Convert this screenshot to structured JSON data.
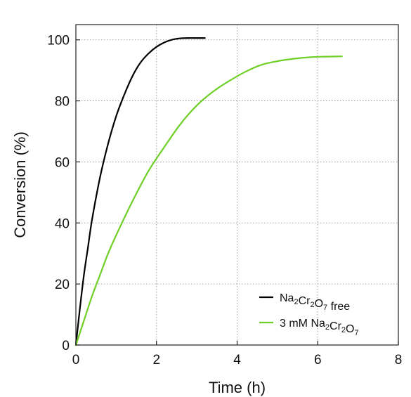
{
  "chart_data": {
    "type": "line",
    "xlabel": "Time (h)",
    "ylabel": "Conversion (%)",
    "xlim": [
      0,
      8
    ],
    "ylim": [
      0,
      105
    ],
    "xticks": [
      0,
      2,
      4,
      6,
      8
    ],
    "yticks": [
      0,
      20,
      40,
      60,
      80,
      100
    ],
    "grid": true,
    "legend_position": "bottom-right",
    "series": [
      {
        "name": "Na2Cr2O7 free",
        "legend": [
          {
            "t": "Na",
            "sub": false
          },
          {
            "t": "2",
            "sub": true
          },
          {
            "t": "Cr",
            "sub": false
          },
          {
            "t": "2",
            "sub": true
          },
          {
            "t": "O",
            "sub": false
          },
          {
            "t": "7",
            "sub": true
          },
          {
            "t": " free",
            "sub": false
          }
        ],
        "color": "#000000",
        "x": [
          0,
          0.1,
          0.2,
          0.3,
          0.4,
          0.6,
          0.8,
          1.0,
          1.2,
          1.4,
          1.6,
          1.8,
          2.0,
          2.2,
          2.4,
          2.6,
          2.8,
          3.0,
          3.2
        ],
        "y": [
          0,
          12,
          23,
          32,
          41,
          55,
          66,
          75,
          82,
          88,
          92.5,
          95.5,
          97.7,
          99.2,
          100.1,
          100.5,
          100.6,
          100.6,
          100.6
        ]
      },
      {
        "name": "3 mM Na2Cr2O7",
        "legend": [
          {
            "t": "3 mM Na",
            "sub": false
          },
          {
            "t": "2",
            "sub": true
          },
          {
            "t": "Cr",
            "sub": false
          },
          {
            "t": "2",
            "sub": true
          },
          {
            "t": "O",
            "sub": false
          },
          {
            "t": "7",
            "sub": true
          }
        ],
        "color": "#6fcf27",
        "x": [
          0,
          0.2,
          0.4,
          0.6,
          0.8,
          1.0,
          1.4,
          1.8,
          2.2,
          2.6,
          3.0,
          3.4,
          3.8,
          4.2,
          4.6,
          5.0,
          5.4,
          5.8,
          6.2,
          6.6
        ],
        "y": [
          0,
          8,
          16,
          23,
          30,
          36,
          47,
          57,
          65,
          72.5,
          78.5,
          83,
          86.5,
          89.5,
          91.8,
          93,
          93.8,
          94.3,
          94.5,
          94.6
        ]
      }
    ]
  }
}
